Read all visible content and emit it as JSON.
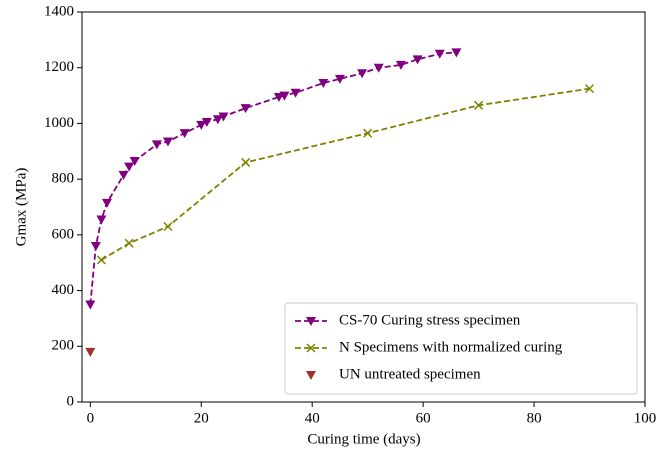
{
  "chart_data": {
    "type": "line",
    "x_label": "Curing time (days)",
    "y_label": "Gmax (MPa)",
    "xlim": [
      -1.5,
      100
    ],
    "ylim": [
      0,
      1400
    ],
    "xticks": [
      0,
      20,
      40,
      60,
      80,
      100
    ],
    "yticks": [
      0,
      200,
      400,
      600,
      800,
      1000,
      1200,
      1400
    ],
    "grid": false,
    "legend": "lower right",
    "series": [
      {
        "name": "CS-70 Curing stress specimen",
        "color": "#800080",
        "marker": "v",
        "linestyle": "dashed",
        "x": [
          0,
          1,
          2,
          3,
          6,
          7,
          8,
          12,
          14,
          17,
          20,
          21,
          23,
          24,
          28,
          34,
          35,
          37,
          42,
          45,
          49,
          52,
          56,
          59,
          63,
          66
        ],
        "values": [
          350,
          560,
          655,
          715,
          815,
          845,
          865,
          925,
          935,
          965,
          995,
          1005,
          1015,
          1025,
          1055,
          1095,
          1100,
          1110,
          1145,
          1160,
          1180,
          1200,
          1210,
          1230,
          1250,
          1255
        ]
      },
      {
        "name": "N Specimens with normalized curing",
        "color": "#808000",
        "marker": "x",
        "linestyle": "dashed",
        "x": [
          2,
          7,
          14,
          28,
          50,
          70,
          90
        ],
        "values": [
          510,
          570,
          630,
          860,
          965,
          1065,
          1125
        ]
      },
      {
        "name": "UN untreated specimen",
        "color": "#a0302a",
        "marker": "v",
        "linestyle": "none",
        "x": [
          0
        ],
        "values": [
          180
        ]
      }
    ]
  }
}
